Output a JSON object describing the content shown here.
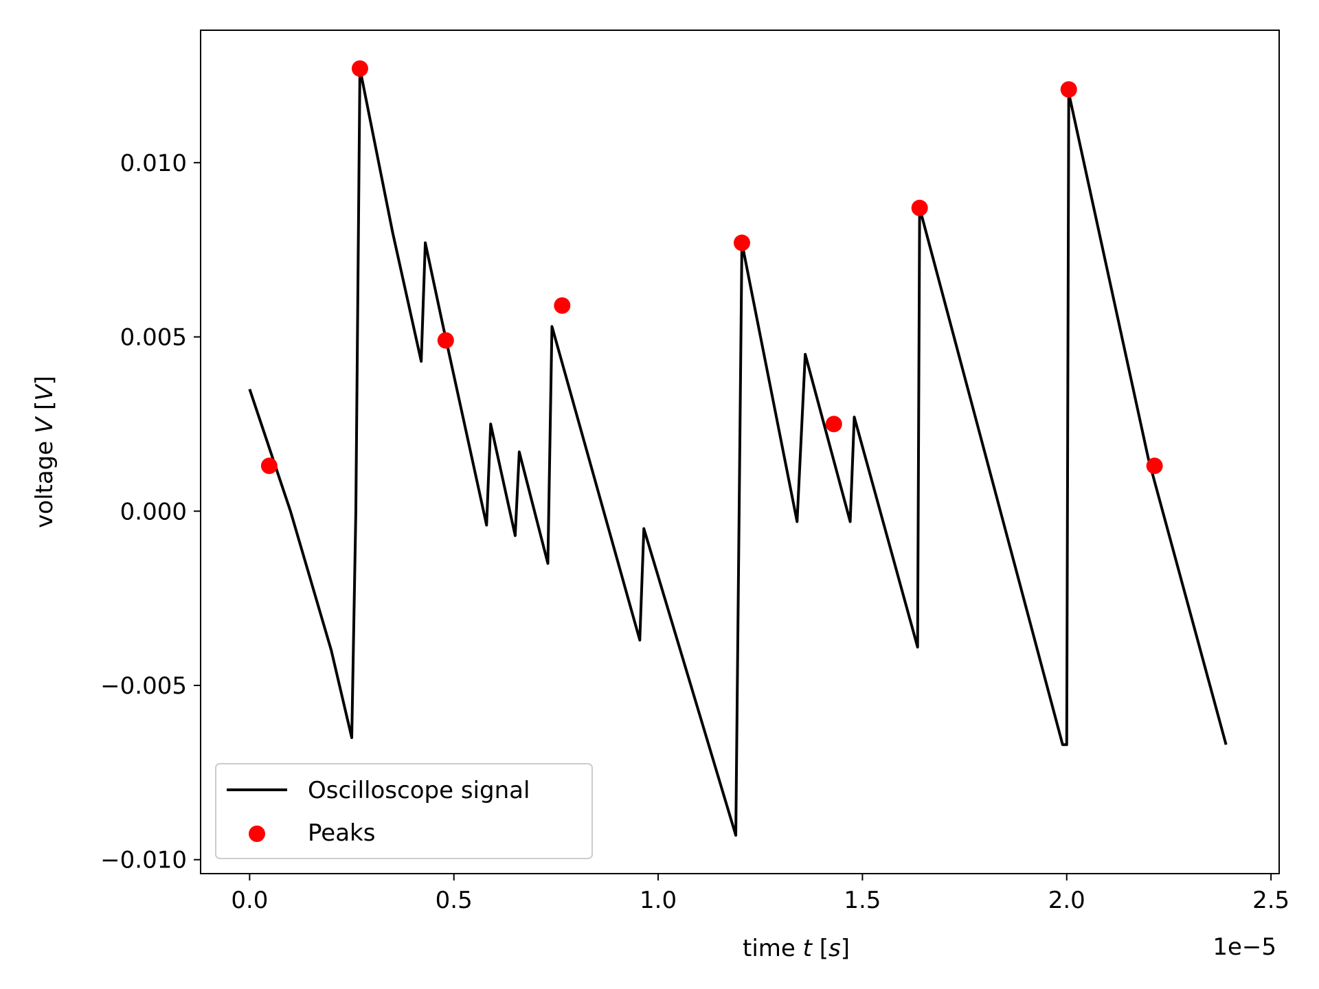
{
  "chart_data": {
    "type": "line",
    "title": "",
    "xlabel": "time t [s]",
    "xlabel_parts": {
      "pre": "time ",
      "var": "t",
      "mid": " [",
      "unit": "s",
      "post": "]"
    },
    "ylabel": "voltage V [V]",
    "ylabel_parts": {
      "pre": "voltage ",
      "var": "V",
      "mid": " [",
      "unit": "V",
      "post": "]"
    },
    "x_offset_text": "1e−5",
    "x_scale_factor": 1e-05,
    "xlim": [
      -1.2e-06,
      2.52e-05
    ],
    "ylim": [
      -0.0104,
      0.0138
    ],
    "x_ticks": [
      0.0,
      5e-06,
      1e-05,
      1.5e-05,
      2e-05,
      2.5e-05
    ],
    "x_tick_labels": [
      "0.0",
      "0.5",
      "1.0",
      "1.5",
      "2.0",
      "2.5"
    ],
    "y_ticks": [
      -0.01,
      -0.005,
      0.0,
      0.005,
      0.01
    ],
    "y_tick_labels": [
      "−0.010",
      "−0.005",
      "0.000",
      "0.005",
      "0.010"
    ],
    "grid": false,
    "legend_position": "lower-left",
    "colors": {
      "signal": "#000000",
      "peaks": "#ff0000",
      "axes": "#000000",
      "legend_border": "#cccccc"
    },
    "series": [
      {
        "name": "Oscilloscope signal",
        "type": "line",
        "x": [
          0.0,
          1e-06,
          2e-06,
          2.5e-06,
          2.6e-06,
          2.7e-06,
          3.5e-06,
          4.2e-06,
          4.3e-06,
          4.7e-06,
          5.8e-06,
          5.9e-06,
          6.5e-06,
          6.6e-06,
          7.3e-06,
          7.4e-06,
          9.55e-06,
          9.65e-06,
          1.19e-05,
          1.205e-05,
          1.34e-05,
          1.36e-05,
          1.47e-05,
          1.48e-05,
          1.635e-05,
          1.64e-05,
          1.99e-05,
          2e-05,
          2.005e-05,
          2.2e-05,
          2.39e-05
        ],
        "y": [
          0.0035,
          0.0,
          -0.004,
          -0.0065,
          0.0,
          0.0127,
          0.008,
          0.0043,
          0.0077,
          0.0055,
          -0.0004,
          0.0025,
          -0.0007,
          0.0017,
          -0.0015,
          0.0053,
          -0.0037,
          -0.0005,
          -0.0093,
          0.0077,
          -0.0003,
          0.0045,
          -0.0003,
          0.0027,
          -0.0039,
          0.0087,
          -0.0067,
          -0.0067,
          0.012,
          0.0015,
          -0.0067
        ]
      },
      {
        "name": "Peaks",
        "type": "scatter",
        "x": [
          4.8e-07,
          2.7e-06,
          4.8e-06,
          7.65e-06,
          1.205e-05,
          1.43e-05,
          1.64e-05,
          2.005e-05,
          2.215e-05
        ],
        "y": [
          0.0013,
          0.0127,
          0.0049,
          0.0059,
          0.0077,
          0.0025,
          0.0087,
          0.0121,
          0.0013
        ]
      }
    ]
  }
}
